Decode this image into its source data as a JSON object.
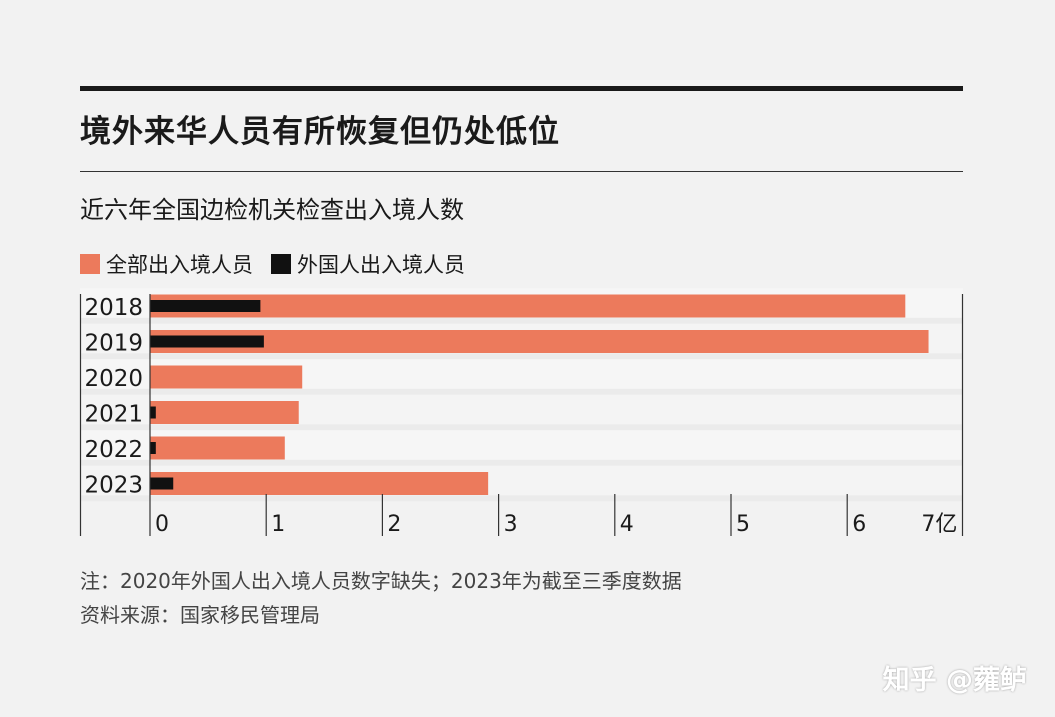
{
  "title": "境外来华人员有所恢复但仍处低位",
  "subtitle": "近六年全国边检机关检查出入境人数",
  "notes": [
    "注：2020年外国人出入境人员数字缺失；2023年为截至三季度数据",
    "资料来源：国家移民管理局"
  ],
  "watermark": "知乎 @蕹鲈",
  "chart_data": {
    "type": "bar",
    "orientation": "horizontal",
    "categories": [
      "2018",
      "2019",
      "2020",
      "2021",
      "2022",
      "2023"
    ],
    "series": [
      {
        "name": "全部出入境人员",
        "color": "#ec7a5c",
        "values": [
          6.5,
          6.7,
          1.31,
          1.28,
          1.16,
          2.91
        ]
      },
      {
        "name": "外国人出入境人员",
        "color": "#111111",
        "values": [
          0.95,
          0.98,
          null,
          0.05,
          0.05,
          0.2
        ]
      }
    ],
    "xlim": [
      0,
      7
    ],
    "xticks": [
      "0",
      "1",
      "2",
      "3",
      "4",
      "5",
      "6",
      "7亿"
    ],
    "legend": "top-left",
    "grid": false
  }
}
